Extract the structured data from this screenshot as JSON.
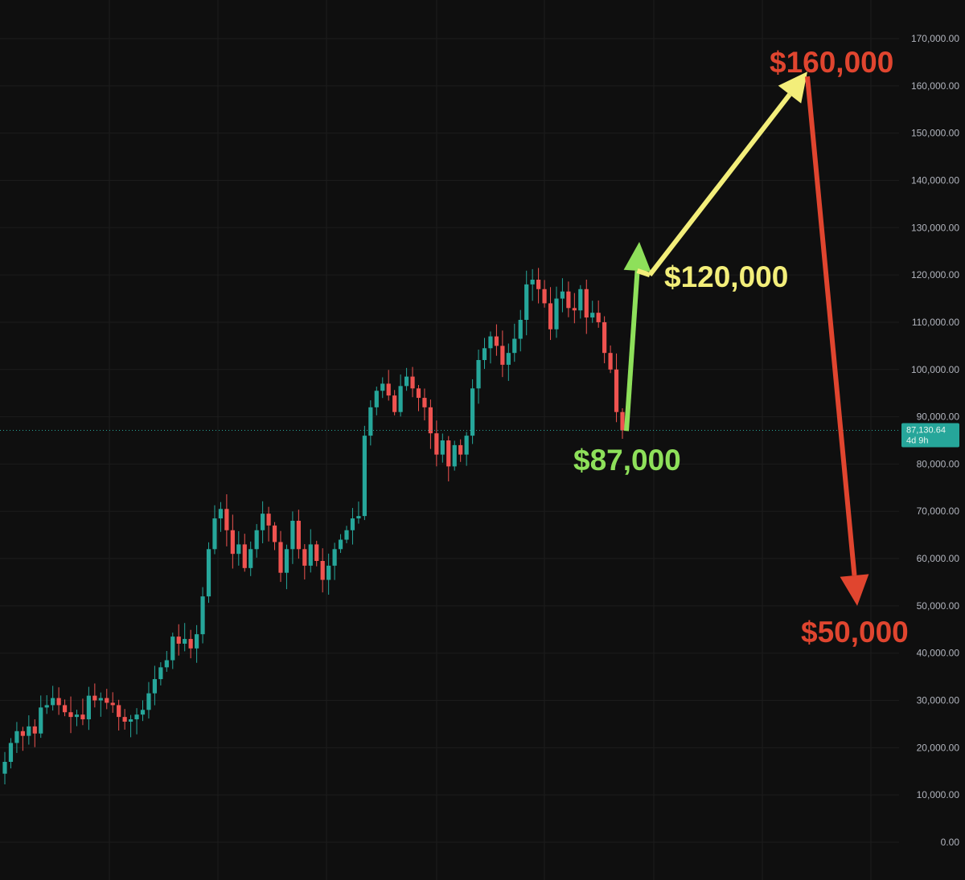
{
  "chart_data": {
    "type": "candlestick",
    "ylim": [
      -3000,
      175000
    ],
    "y_ticks": [
      "170,000.00",
      "160,000.00",
      "150,000.00",
      "140,000.00",
      "130,000.00",
      "120,000.00",
      "110,000.00",
      "100,000.00",
      "90,000.00",
      "80,000.00",
      "70,000.00",
      "60,000.00",
      "50,000.00",
      "40,000.00",
      "30,000.00",
      "20,000.00",
      "10,000.00",
      "0.00"
    ],
    "y_tick_values": [
      170000,
      160000,
      150000,
      140000,
      130000,
      120000,
      110000,
      100000,
      90000,
      80000,
      70000,
      60000,
      50000,
      40000,
      30000,
      20000,
      10000,
      0
    ],
    "grid": true,
    "colors": {
      "up": "#26a69a",
      "down": "#ef5350",
      "green": "#8ee05a",
      "yellow": "#f3ee7a",
      "red": "#e0452f",
      "background": "#0f0f0f"
    },
    "current_price": {
      "value": 87130.64,
      "label": "87,130.64",
      "countdown": "4d 9h"
    },
    "series": [
      {
        "close": [
          17000,
          21000,
          23500,
          22500,
          24500,
          23000,
          28500,
          29000,
          30500,
          29000,
          27500,
          26500,
          27000,
          26000,
          31000,
          30000,
          30500,
          29500,
          29000,
          26500,
          25500,
          26000,
          27000,
          28000,
          31500,
          34500,
          37000,
          38500,
          43500,
          42000,
          43000,
          41000,
          44000,
          52000,
          62000,
          68500,
          70500,
          66000,
          61000,
          63000,
          58000,
          62000,
          66000,
          69500,
          67000,
          63500,
          57000,
          62000,
          68000,
          62000,
          58500,
          63000,
          59500,
          55500,
          58500,
          62000,
          64000,
          66000,
          68500,
          69000,
          86000,
          92000,
          95500,
          97000,
          94500,
          91000,
          96500,
          98500,
          96000,
          94000,
          92000,
          86500,
          82000,
          85000,
          79500,
          84000,
          82000,
          86000,
          96000,
          102000,
          104500,
          107000,
          105000,
          101000,
          103500,
          106500,
          110500,
          118000,
          119000,
          117000,
          114000,
          108500,
          115000,
          116500,
          113000,
          112500,
          117000,
          111000,
          112000,
          110000,
          103500,
          100000,
          91000,
          87130
        ]
      }
    ],
    "annotations": [
      {
        "text": "$87,000",
        "color": "green"
      },
      {
        "text": "$120,000",
        "color": "yellow"
      },
      {
        "text": "$160,000",
        "color": "red"
      },
      {
        "text": "$50,000",
        "color": "red"
      }
    ],
    "projection_path": [
      {
        "y": 87000,
        "color": "green"
      },
      {
        "y": 127000,
        "color": "green"
      },
      {
        "y": 120000,
        "color": "yellow"
      },
      {
        "y": 163000,
        "color": "yellow"
      },
      {
        "y": 50000,
        "color": "red"
      }
    ]
  }
}
